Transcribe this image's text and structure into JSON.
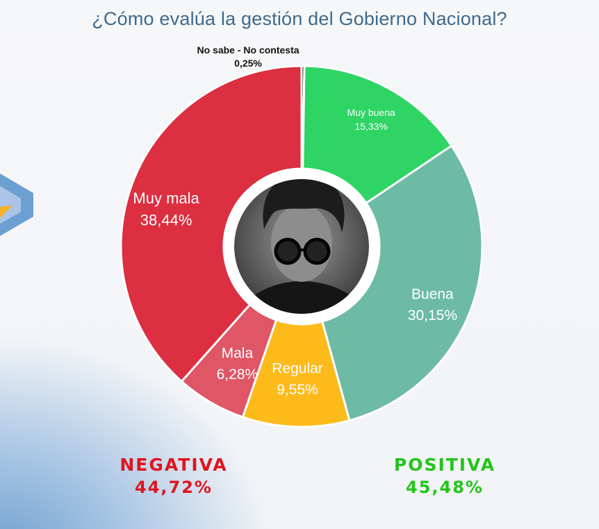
{
  "chart_data": {
    "type": "pie",
    "variant": "donut",
    "title": "¿Cómo evalúa la gestión del Gobierno Nacional?",
    "start": "top",
    "direction": "clockwise",
    "slices": [
      {
        "label": "No sabe - No contesta",
        "value": 0.25,
        "value_label": "0,25%",
        "color": "#222222",
        "label_position": "outside"
      },
      {
        "label": "Muy buena",
        "value": 15.33,
        "value_label": "15,33%",
        "color": "#2ed464",
        "label_position": "inside"
      },
      {
        "label": "Buena",
        "value": 30.15,
        "value_label": "30,15%",
        "color": "#6dbba5",
        "label_position": "inside"
      },
      {
        "label": "Regular",
        "value": 9.55,
        "value_label": "9,55%",
        "color": "#fdbb1b",
        "label_position": "inside"
      },
      {
        "label": "Mala",
        "value": 6.28,
        "value_label": "6,28%",
        "color": "#df5666",
        "label_position": "inside"
      },
      {
        "label": "Muy mala",
        "value": 38.44,
        "value_label": "38,44%",
        "color": "#dc2f41",
        "label_position": "inside"
      }
    ],
    "summary": [
      {
        "label": "NEGATIVA",
        "value_label": "44,72%",
        "color": "#e0141e"
      },
      {
        "label": "POSITIVA",
        "value_label": "45,48%",
        "color": "#22c51a"
      }
    ]
  }
}
